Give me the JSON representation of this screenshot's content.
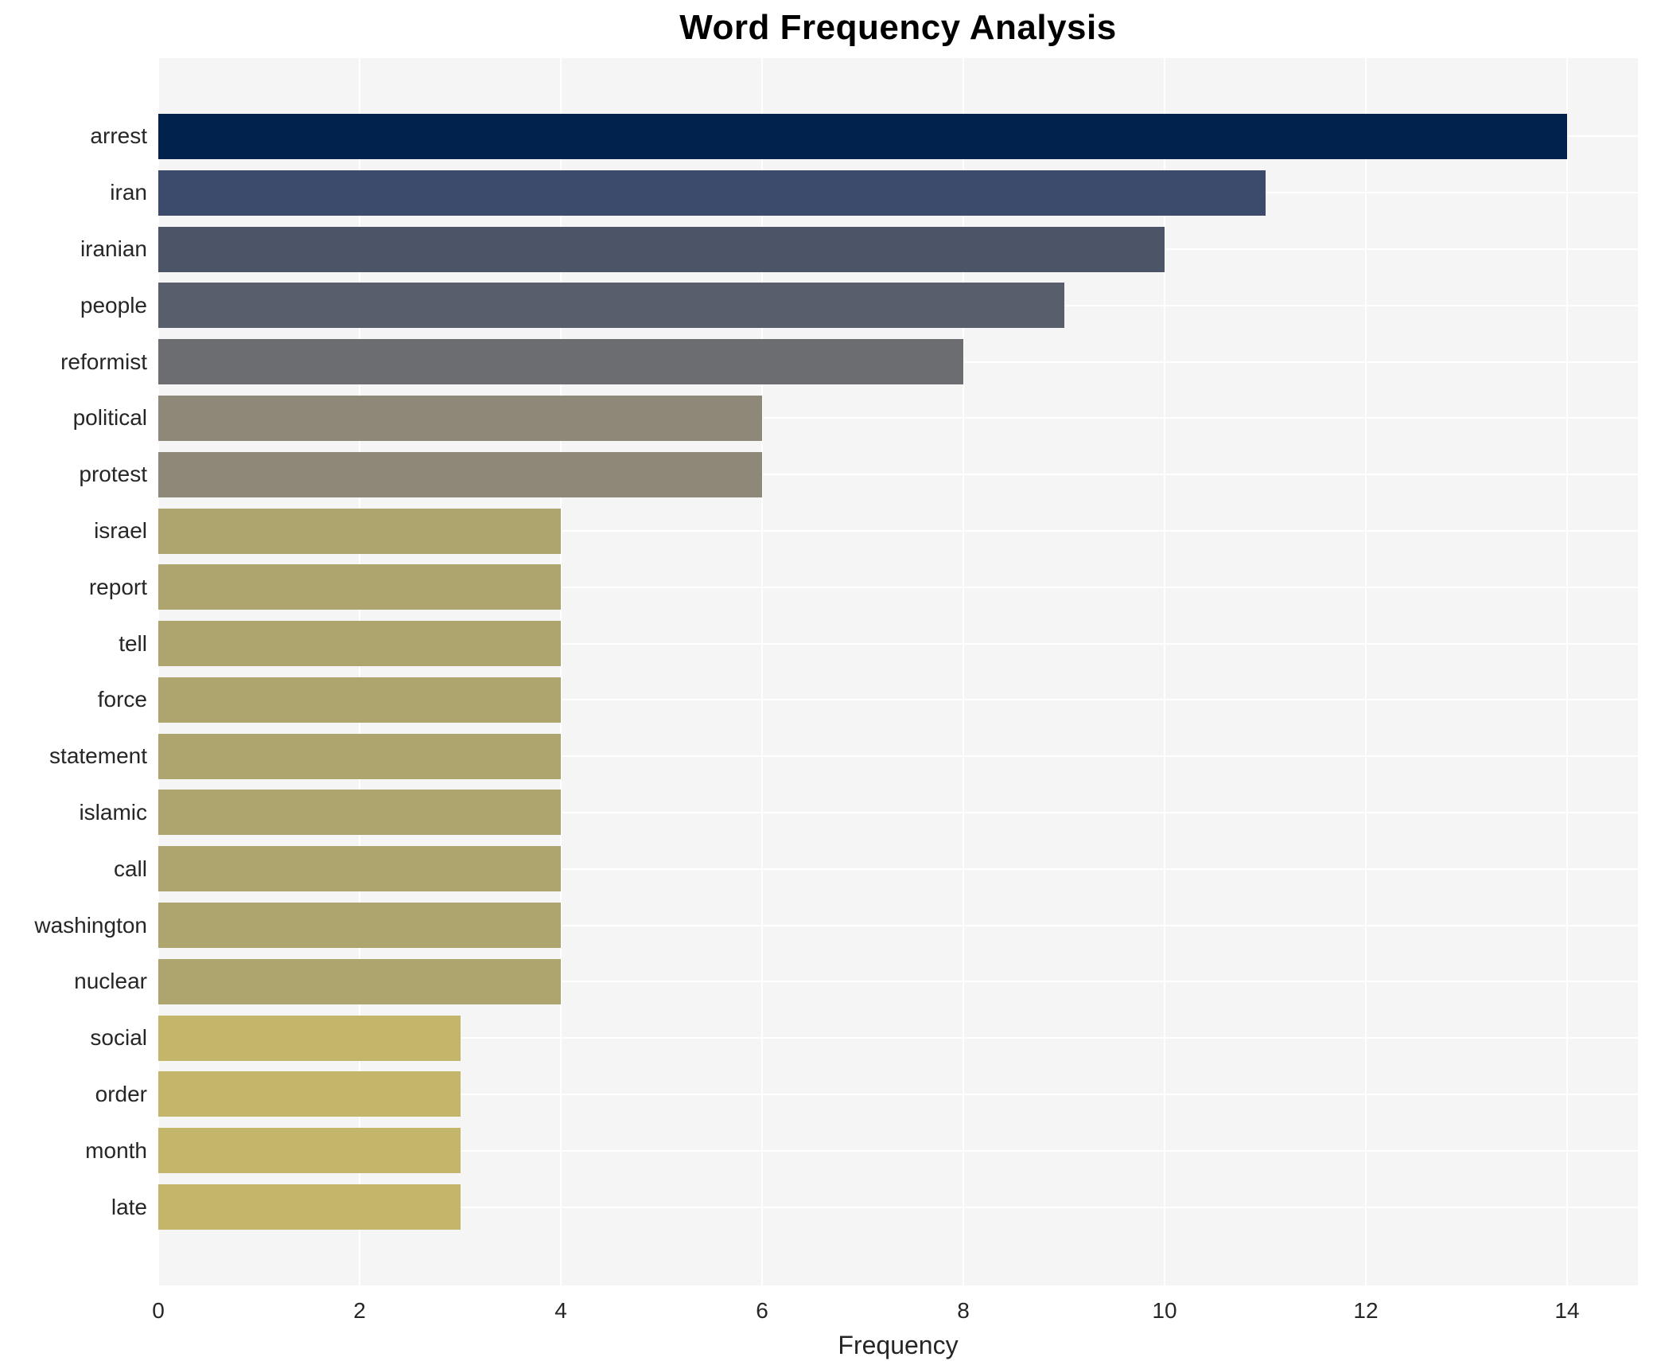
{
  "chart_data": {
    "type": "bar",
    "orientation": "horizontal",
    "title": "Word Frequency Analysis",
    "xlabel": "Frequency",
    "ylabel": "",
    "categories": [
      "arrest",
      "iran",
      "iranian",
      "people",
      "reformist",
      "political",
      "protest",
      "israel",
      "report",
      "tell",
      "force",
      "statement",
      "islamic",
      "call",
      "washington",
      "nuclear",
      "social",
      "order",
      "month",
      "late"
    ],
    "values": [
      14,
      11,
      10,
      9,
      8,
      6,
      6,
      4,
      4,
      4,
      4,
      4,
      4,
      4,
      4,
      4,
      3,
      3,
      3,
      3
    ],
    "bar_colors": [
      "#00224d",
      "#3c4a6c",
      "#4c5468",
      "#585e6c",
      "#6b6d70",
      "#8e8878",
      "#8e8878",
      "#aea46e",
      "#aea46e",
      "#aea46e",
      "#aea46e",
      "#aea46e",
      "#aea46e",
      "#aea46e",
      "#aea46e",
      "#aea46e",
      "#c3b56a",
      "#c3b56a",
      "#c3b56a",
      "#c3b56a"
    ],
    "xticks": [
      0,
      2,
      4,
      6,
      8,
      10,
      12,
      14
    ],
    "xlim": [
      0,
      14.7
    ],
    "grid": true,
    "legend_position": "none",
    "plot_bg_color": "#f5f5f6",
    "grid_color": "#ffffff",
    "text_color": "#262626",
    "title_color": "#000000"
  }
}
